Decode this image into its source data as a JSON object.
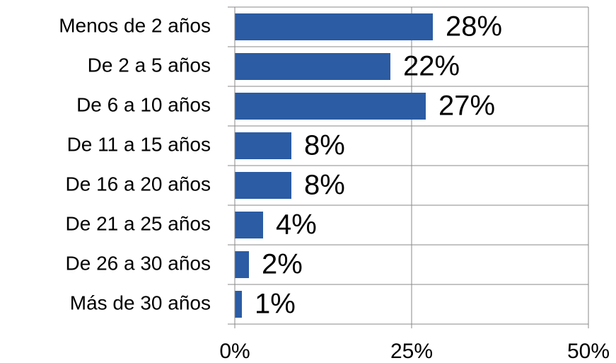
{
  "chart_data": {
    "type": "bar",
    "orientation": "horizontal",
    "categories": [
      "Menos de 2 años",
      "De 2 a 5 años",
      "De 6 a 10 años",
      "De 11 a 15 años",
      "De 16 a 20 años",
      "De 21 a 25 años",
      "De 26 a 30 años",
      "Más de 30 años"
    ],
    "values": [
      28,
      22,
      27,
      8,
      8,
      4,
      2,
      1
    ],
    "value_labels": [
      "28%",
      "22%",
      "27%",
      "8%",
      "8%",
      "4%",
      "2%",
      "1%"
    ],
    "color": "#2b5ca4",
    "xlim": [
      0,
      50
    ],
    "xticks": [
      {
        "value": 0,
        "label": "0%"
      },
      {
        "value": 25,
        "label": "25%"
      },
      {
        "value": 50,
        "label": "50%"
      }
    ],
    "grid": true
  }
}
